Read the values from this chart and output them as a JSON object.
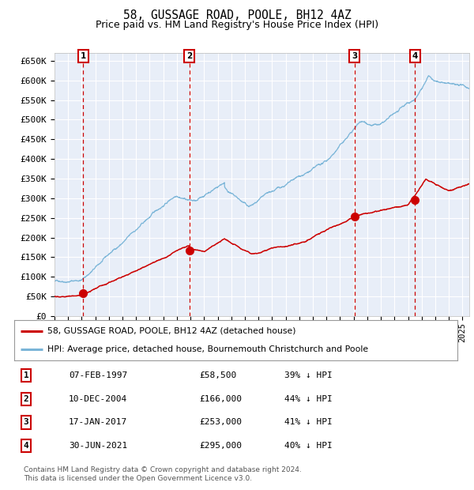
{
  "title": "58, GUSSAGE ROAD, POOLE, BH12 4AZ",
  "subtitle": "Price paid vs. HM Land Registry's House Price Index (HPI)",
  "ylim": [
    0,
    670000
  ],
  "yticks": [
    0,
    50000,
    100000,
    150000,
    200000,
    250000,
    300000,
    350000,
    400000,
    450000,
    500000,
    550000,
    600000,
    650000
  ],
  "ytick_labels": [
    "£0",
    "£50K",
    "£100K",
    "£150K",
    "£200K",
    "£250K",
    "£300K",
    "£350K",
    "£400K",
    "£450K",
    "£500K",
    "£550K",
    "£600K",
    "£650K"
  ],
  "plot_bg_color": "#e8eef8",
  "grid_color": "#ffffff",
  "hpi_line_color": "#7ab5d8",
  "price_line_color": "#cc0000",
  "vline_color": "#cc0000",
  "sale_points": [
    {
      "date_num": 1997.1,
      "price": 58500,
      "label": "1"
    },
    {
      "date_num": 2004.92,
      "price": 166000,
      "label": "2"
    },
    {
      "date_num": 2017.05,
      "price": 253000,
      "label": "3"
    },
    {
      "date_num": 2021.5,
      "price": 295000,
      "label": "4"
    }
  ],
  "legend_entries": [
    {
      "color": "#cc0000",
      "label": "58, GUSSAGE ROAD, POOLE, BH12 4AZ (detached house)"
    },
    {
      "color": "#7ab5d8",
      "label": "HPI: Average price, detached house, Bournemouth Christchurch and Poole"
    }
  ],
  "table_data": [
    [
      "1",
      "07-FEB-1997",
      "£58,500",
      "39% ↓ HPI"
    ],
    [
      "2",
      "10-DEC-2004",
      "£166,000",
      "44% ↓ HPI"
    ],
    [
      "3",
      "17-JAN-2017",
      "£253,000",
      "41% ↓ HPI"
    ],
    [
      "4",
      "30-JUN-2021",
      "£295,000",
      "40% ↓ HPI"
    ]
  ],
  "footer": "Contains HM Land Registry data © Crown copyright and database right 2024.\nThis data is licensed under the Open Government Licence v3.0.",
  "title_fontsize": 10.5,
  "subtitle_fontsize": 9,
  "tick_fontsize": 8,
  "xstart": 1995.0,
  "xend": 2025.5
}
